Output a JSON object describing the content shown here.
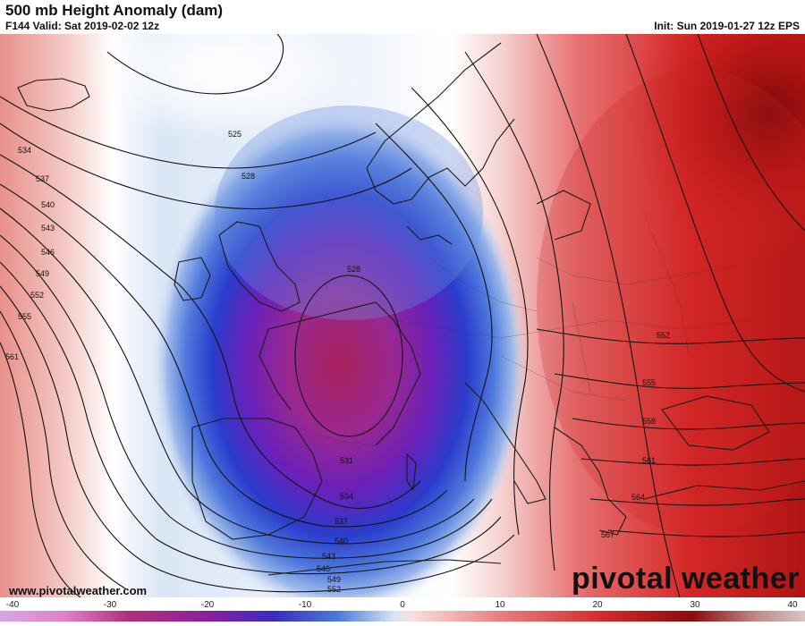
{
  "header": {
    "title": "500 mb Height Anomaly (dam)",
    "valid": "F144 Valid: Sat 2019-02-02 12z",
    "init": "Init: Sun 2019-01-27 12z EPS"
  },
  "footer": {
    "website": "www.pivotalweather.com",
    "brand": "pivotal weather"
  },
  "colorbar": {
    "min": -40,
    "max": 40,
    "ticks": [
      "-40",
      "-30",
      "-20",
      "-10",
      "0",
      "10",
      "20",
      "30",
      "40"
    ],
    "colors": {
      "neg_extreme": "#d9a6e6",
      "neg_magenta": "#b0307a",
      "neg_purple": "#6a1fb0",
      "neg_blue": "#2040d0",
      "neg_light": "#cfdcf0",
      "zero": "#ffffff",
      "pos_light": "#f4caca",
      "pos_mid": "#e06060",
      "pos_red": "#d42020",
      "pos_dark": "#8a0c0c"
    }
  },
  "contour_labels": [
    "525",
    "528",
    "528",
    "531",
    "534",
    "534",
    "537",
    "537",
    "540",
    "540",
    "543",
    "543",
    "546",
    "546",
    "549",
    "549",
    "552",
    "552",
    "552",
    "555",
    "555",
    "558",
    "561",
    "561",
    "564",
    "567"
  ],
  "map_features": {
    "low_center": "Bay of Biscay / France",
    "positive_anomaly": "Eastern Europe / Scandinavia east",
    "negative_anomaly": "Western Europe / Iberia"
  }
}
